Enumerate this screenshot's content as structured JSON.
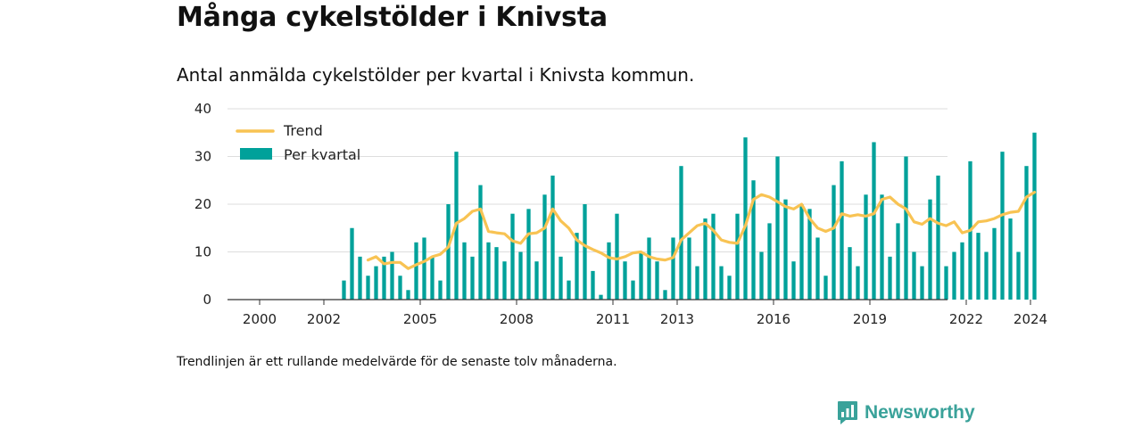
{
  "title": "Många cykelstölder i Knivsta",
  "subtitle": "Antal anmälda cykelstölder per kvartal i Knivsta kommun.",
  "footnote": "Trendlinjen är ett rullande medelvärde för de senaste tolv månaderna.",
  "brand": {
    "name": "Newsworthy",
    "icon": "newsworthy-logo-icon",
    "color": "#3aa29a"
  },
  "colors": {
    "bars": "#00a19a",
    "trend": "#f8c353",
    "grid": "#dddddd",
    "axis": "#333333"
  },
  "chart_data": {
    "type": "bar",
    "title": "Många cykelstölder i Knivsta",
    "xlabel": "",
    "ylabel": "",
    "ylim": [
      0,
      40
    ],
    "yticks": [
      0,
      10,
      20,
      30,
      40
    ],
    "xticks": [
      "2000",
      "2002",
      "2005",
      "2008",
      "2011",
      "2013",
      "2016",
      "2019",
      "2022",
      "2024"
    ],
    "grid": true,
    "legend_position": "top-left",
    "x_start": "2003 Q1",
    "x_end": "2024 Q3",
    "series": [
      {
        "name": "Per kvartal",
        "type": "bar",
        "values": [
          4,
          15,
          9,
          5,
          7,
          9,
          10,
          5,
          2,
          12,
          13,
          9,
          4,
          20,
          31,
          12,
          9,
          24,
          12,
          11,
          8,
          18,
          10,
          19,
          8,
          22,
          26,
          9,
          4,
          14,
          20,
          6,
          1,
          12,
          18,
          8,
          4,
          10,
          13,
          8,
          2,
          13,
          28,
          13,
          7,
          17,
          18,
          7,
          5,
          18,
          34,
          25,
          10,
          16,
          30,
          21,
          8,
          20,
          19,
          13,
          5,
          24,
          29,
          11,
          7,
          22,
          33,
          22,
          9,
          16,
          30,
          10,
          7,
          21,
          26,
          7,
          10,
          12,
          29,
          14,
          10,
          15,
          31,
          17,
          10,
          28,
          35
        ]
      },
      {
        "name": "Trend",
        "type": "line",
        "start_index": 3,
        "values": [
          8.3,
          9.0,
          7.5,
          7.8,
          7.8,
          6.5,
          7.3,
          8.0,
          9.0,
          9.5,
          11.0,
          16.0,
          17.0,
          18.5,
          19.0,
          14.3,
          14.0,
          13.8,
          12.3,
          11.8,
          13.8,
          14.0,
          15.0,
          19.0,
          16.5,
          15.0,
          12.5,
          11.3,
          10.5,
          9.8,
          8.8,
          8.5,
          9.0,
          9.8,
          10.0,
          9.0,
          8.5,
          8.3,
          8.8,
          12.5,
          14.0,
          15.5,
          16.0,
          14.5,
          12.5,
          12.0,
          11.8,
          15.5,
          21.0,
          22.0,
          21.5,
          20.5,
          19.5,
          19.0,
          20.0,
          17.0,
          15.0,
          14.3,
          15.0,
          18.0,
          17.5,
          17.8,
          17.5,
          18.0,
          21.0,
          21.5,
          20.0,
          19.0,
          16.3,
          15.8,
          17.0,
          16.0,
          15.5,
          16.3,
          14.0,
          14.5,
          16.3,
          16.5,
          17.0,
          17.8,
          18.3,
          18.5,
          21.5,
          22.5
        ]
      }
    ]
  }
}
